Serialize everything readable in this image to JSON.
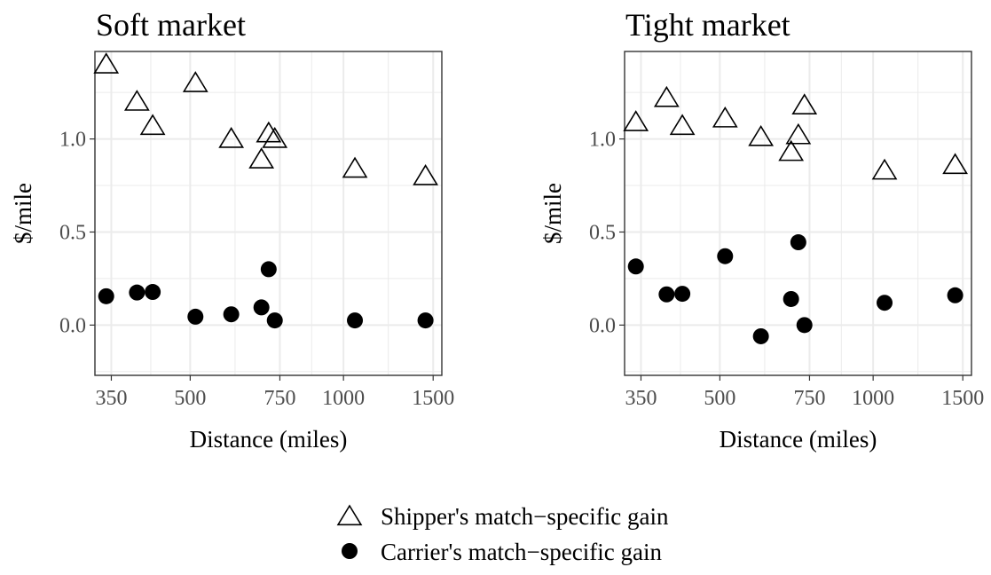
{
  "chart_data": [
    {
      "type": "scatter",
      "title": "Soft market",
      "xlabel": "Distance (miles)",
      "ylabel": "$/mile",
      "x_scale": "log",
      "xlim": [
        325,
        1560
      ],
      "ylim": [
        -0.27,
        1.47
      ],
      "x_ticks": [
        350,
        500,
        750,
        1000,
        1500
      ],
      "x_tick_labels": [
        "350",
        "500",
        "750",
        "1000",
        "1500"
      ],
      "y_ticks": [
        0.0,
        0.5,
        1.0
      ],
      "y_tick_labels": [
        "0.0",
        "0.5",
        "1.0"
      ],
      "grid": true,
      "series": [
        {
          "name": "Shipper's match−specific gain",
          "marker": "open-triangle",
          "points": [
            {
              "x": 342,
              "y": 1.4
            },
            {
              "x": 393,
              "y": 1.2
            },
            {
              "x": 422,
              "y": 1.07
            },
            {
              "x": 512,
              "y": 1.3
            },
            {
              "x": 602,
              "y": 1.0
            },
            {
              "x": 690,
              "y": 0.89
            },
            {
              "x": 713,
              "y": 1.03
            },
            {
              "x": 733,
              "y": 1.0
            },
            {
              "x": 1053,
              "y": 0.84
            },
            {
              "x": 1449,
              "y": 0.8
            }
          ]
        },
        {
          "name": "Carrier's match−specific gain",
          "marker": "filled-circle",
          "points": [
            {
              "x": 342,
              "y": 0.155
            },
            {
              "x": 393,
              "y": 0.175
            },
            {
              "x": 422,
              "y": 0.178
            },
            {
              "x": 512,
              "y": 0.045
            },
            {
              "x": 602,
              "y": 0.058
            },
            {
              "x": 690,
              "y": 0.095
            },
            {
              "x": 713,
              "y": 0.3
            },
            {
              "x": 733,
              "y": 0.025
            },
            {
              "x": 1053,
              "y": 0.025
            },
            {
              "x": 1449,
              "y": 0.025
            }
          ]
        }
      ]
    },
    {
      "type": "scatter",
      "title": "Tight market",
      "xlabel": "Distance (miles)",
      "ylabel": "$/mile",
      "x_scale": "log",
      "xlim": [
        325,
        1560
      ],
      "ylim": [
        -0.27,
        1.47
      ],
      "x_ticks": [
        350,
        500,
        750,
        1000,
        1500
      ],
      "x_tick_labels": [
        "350",
        "500",
        "750",
        "1000",
        "1500"
      ],
      "y_ticks": [
        0.0,
        0.5,
        1.0
      ],
      "y_tick_labels": [
        "0.0",
        "0.5",
        "1.0"
      ],
      "grid": true,
      "series": [
        {
          "name": "Shipper's match−specific gain",
          "marker": "open-triangle",
          "points": [
            {
              "x": 342,
              "y": 1.09
            },
            {
              "x": 393,
              "y": 1.22
            },
            {
              "x": 422,
              "y": 1.07
            },
            {
              "x": 512,
              "y": 1.11
            },
            {
              "x": 602,
              "y": 1.01
            },
            {
              "x": 690,
              "y": 0.93
            },
            {
              "x": 713,
              "y": 1.02
            },
            {
              "x": 733,
              "y": 1.18
            },
            {
              "x": 1053,
              "y": 0.83
            },
            {
              "x": 1449,
              "y": 0.86
            }
          ]
        },
        {
          "name": "Carrier's match−specific gain",
          "marker": "filled-circle",
          "points": [
            {
              "x": 342,
              "y": 0.315
            },
            {
              "x": 393,
              "y": 0.165
            },
            {
              "x": 422,
              "y": 0.168
            },
            {
              "x": 512,
              "y": 0.37
            },
            {
              "x": 602,
              "y": -0.06
            },
            {
              "x": 690,
              "y": 0.14
            },
            {
              "x": 713,
              "y": 0.445
            },
            {
              "x": 733,
              "y": 0.0
            },
            {
              "x": 1053,
              "y": 0.12
            },
            {
              "x": 1449,
              "y": 0.16
            }
          ]
        }
      ]
    }
  ],
  "legend": {
    "placement": "bottom",
    "items": [
      {
        "label": "Shipper's match−specific gain",
        "marker": "open-triangle"
      },
      {
        "label": "Carrier's match−specific gain",
        "marker": "filled-circle"
      }
    ]
  },
  "colors": {
    "marker": "#000000",
    "grid": "#ebebeb",
    "panel_border": "#333333",
    "tick_label": "#4d4d4d",
    "background": "#ffffff"
  }
}
